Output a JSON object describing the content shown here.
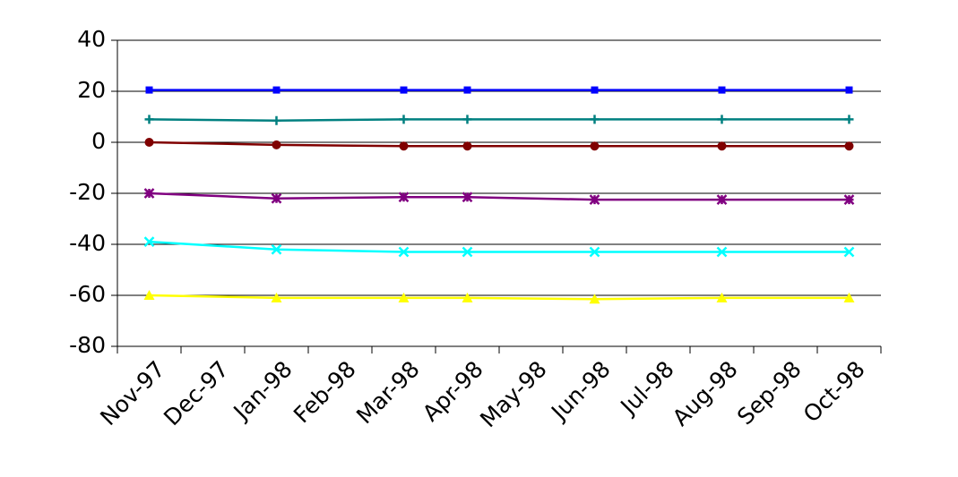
{
  "chart_data": {
    "type": "line",
    "categories": [
      "Nov-97",
      "Dec-97",
      "Jan-98",
      "Feb-98",
      "Mar-98",
      "Apr-98",
      "May-98",
      "Jun-98",
      "Jul-98",
      "Aug-98",
      "Sep-98",
      "Oct-98"
    ],
    "x": [
      "Nov-97",
      "Jan-98",
      "Mar-98",
      "Apr-98",
      "Jun-98",
      "Aug-98",
      "Oct-98"
    ],
    "series": [
      {
        "color": "#0000ff",
        "marker": "square",
        "values": [
          20.5,
          20.5,
          20.5,
          20.5,
          20.5,
          20.5,
          20.5
        ]
      },
      {
        "color": "#008080",
        "marker": "plus",
        "values": [
          9,
          8.5,
          9,
          9,
          9,
          9,
          9
        ]
      },
      {
        "color": "#800000",
        "marker": "circle",
        "values": [
          0,
          -1,
          -1.5,
          -1.5,
          -1.5,
          -1.5,
          -1.5
        ]
      },
      {
        "color": "#800080",
        "marker": "star",
        "values": [
          -20,
          -22,
          -21.5,
          -21.5,
          -22.5,
          -22.5,
          -22.5
        ]
      },
      {
        "color": "#00ffff",
        "marker": "cross",
        "values": [
          -39,
          -42,
          -43,
          -43,
          -43,
          -43,
          -43
        ]
      },
      {
        "color": "#ffff00",
        "marker": "triangle",
        "values": [
          -60,
          -61,
          -61,
          -61,
          -61.5,
          -61,
          -61
        ]
      }
    ],
    "ylim": [
      -80,
      40
    ],
    "yticks": [
      -80,
      -60,
      -40,
      -20,
      0,
      20,
      40
    ],
    "grid": true
  }
}
